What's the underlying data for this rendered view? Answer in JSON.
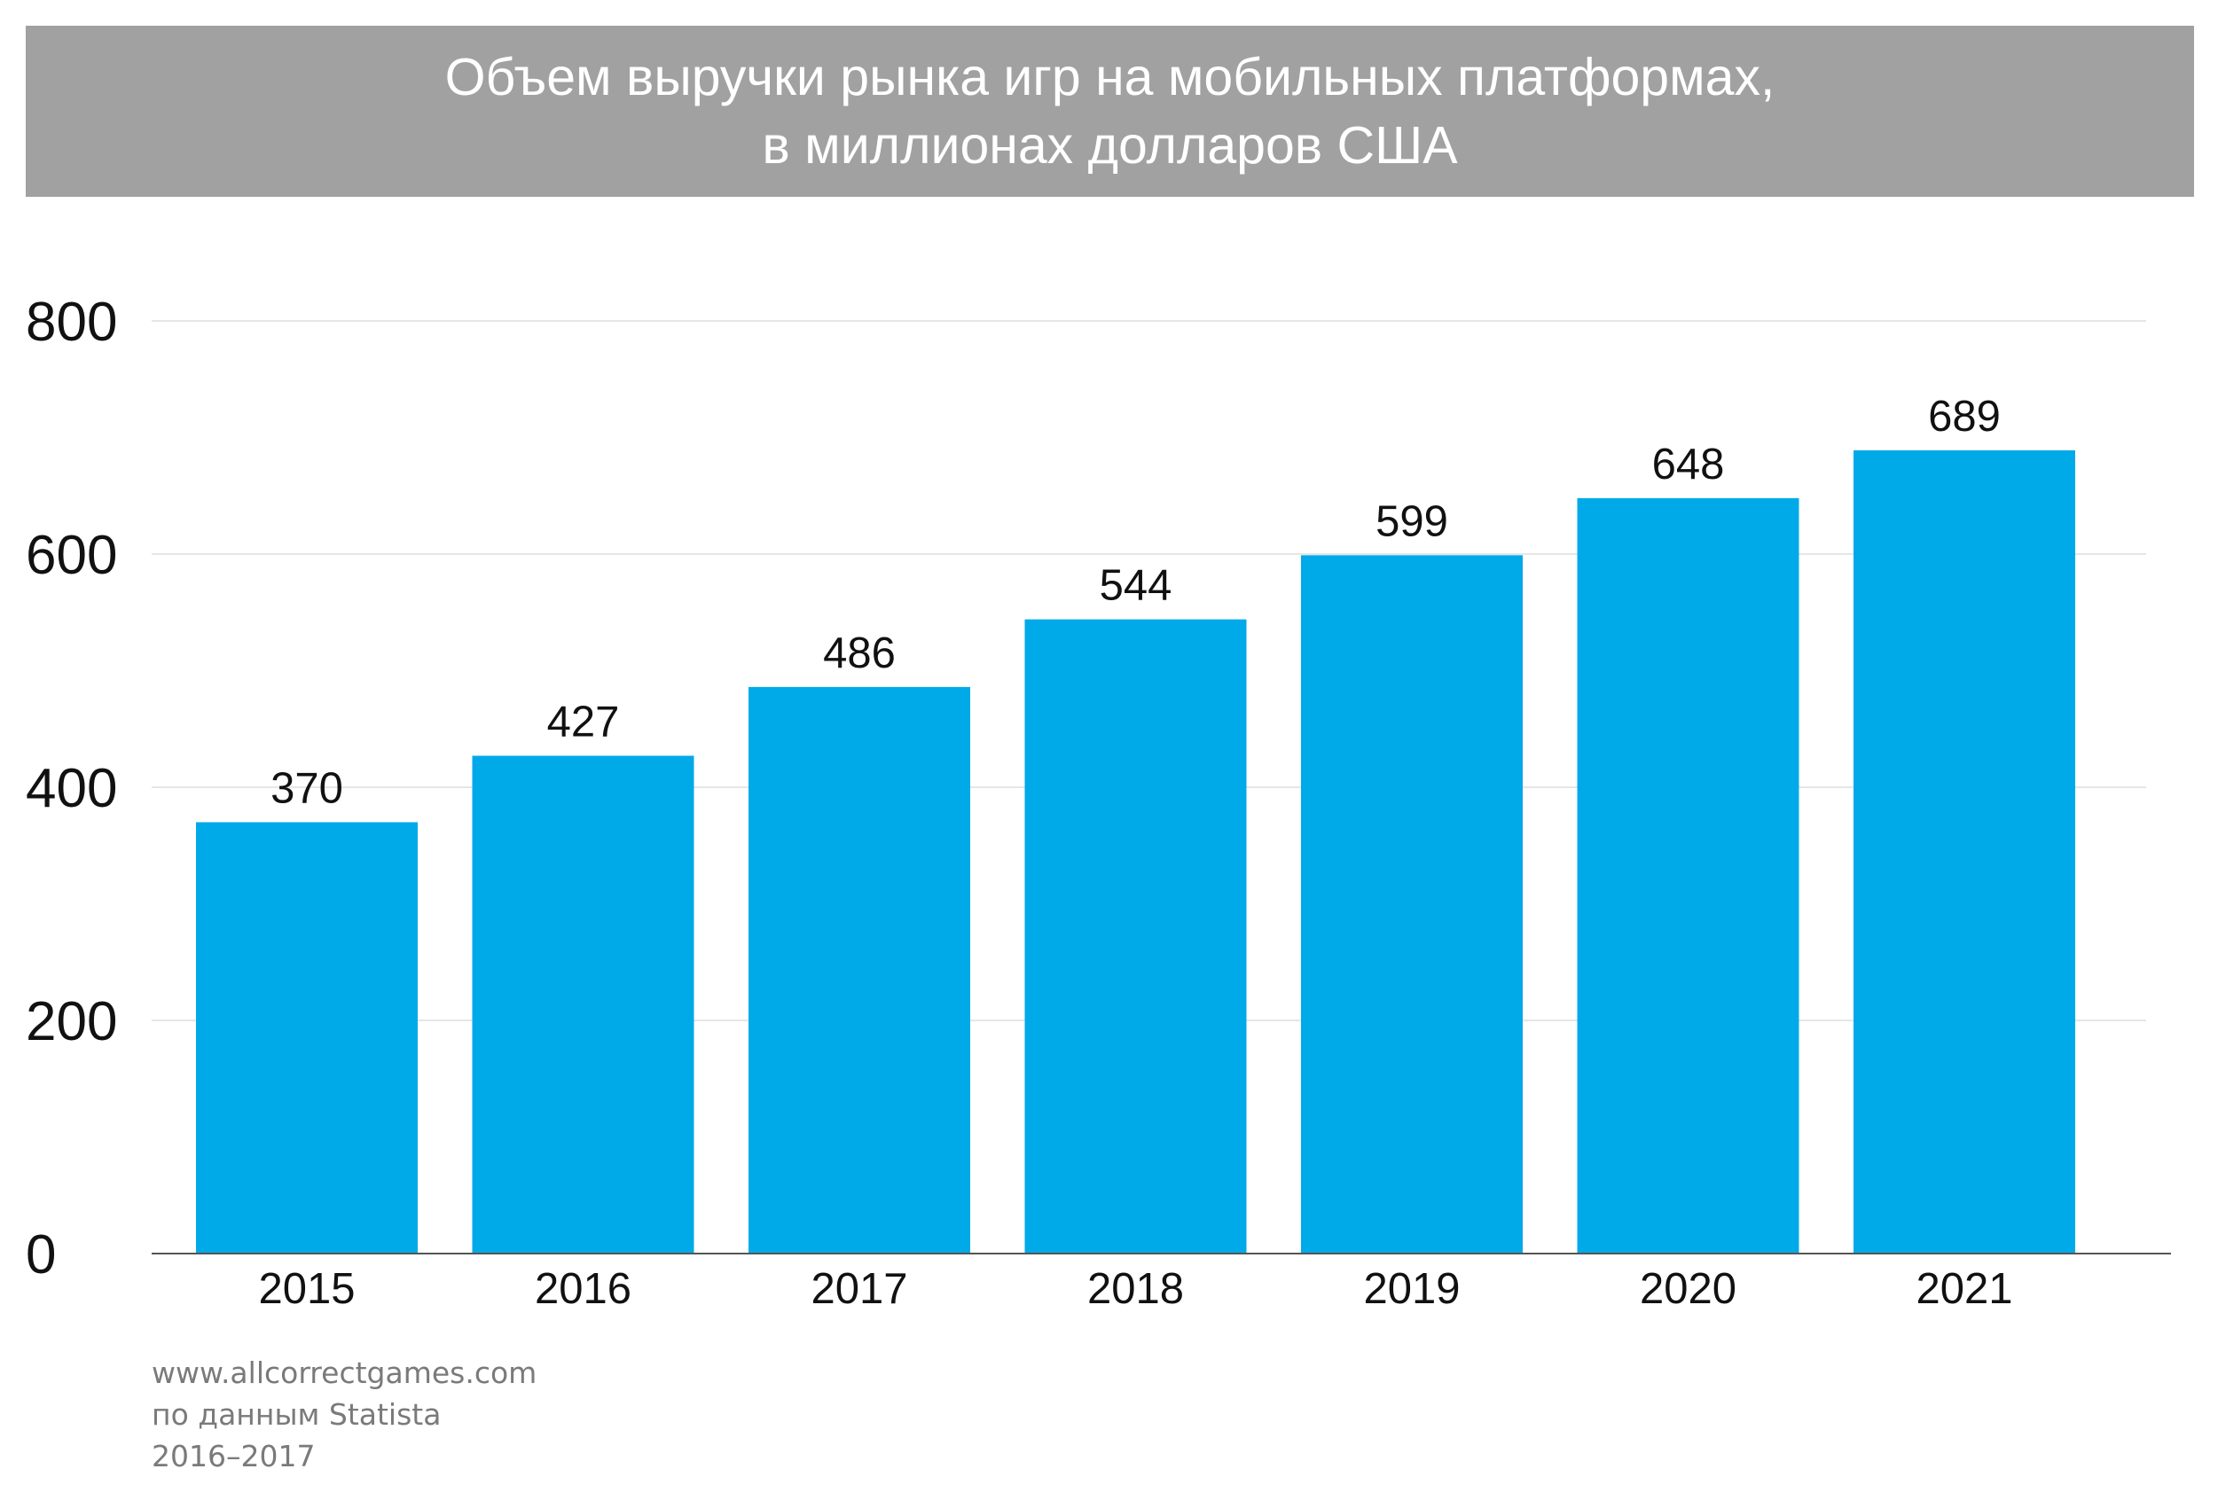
{
  "header": {
    "title_line1": "Объем выручки рынка игр на мобильных платформах,",
    "title_line2": "в миллионах долларов США"
  },
  "chart_data": {
    "type": "bar",
    "categories": [
      "2015",
      "2016",
      "2017",
      "2018",
      "2019",
      "2020",
      "2021"
    ],
    "values": [
      370,
      427,
      486,
      544,
      599,
      648,
      689
    ],
    "data_labels": [
      "370",
      "427",
      "486",
      "544",
      "599",
      "648",
      "689"
    ],
    "title": "Объем выручки рынка игр на мобильных платформах, в миллионах долларов США",
    "xlabel": "",
    "ylabel": "",
    "ylim": [
      0,
      800
    ],
    "yticks": [
      0,
      200,
      400,
      600,
      800
    ],
    "grid": true,
    "legend": "none",
    "colors": {
      "bar": "#00aae9",
      "grid": "#e6e6e6",
      "axis": "#555555",
      "text": "#111111"
    }
  },
  "footer": {
    "source_line1": "www.allcorrectgames.com",
    "source_line2": "по данным Statista",
    "source_line3": "2016–2017"
  }
}
